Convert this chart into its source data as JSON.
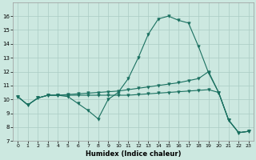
{
  "xlabel": "Humidex (Indice chaleur)",
  "bg_color": "#cce8e0",
  "grid_color": "#aaccC4",
  "line_color": "#1a7060",
  "x_data": [
    0,
    1,
    2,
    3,
    4,
    5,
    6,
    7,
    8,
    9,
    10,
    11,
    12,
    13,
    14,
    15,
    16,
    17,
    18,
    19,
    20,
    21,
    22,
    23
  ],
  "series1": [
    10.2,
    9.6,
    10.1,
    10.3,
    10.3,
    10.2,
    9.7,
    9.2,
    8.6,
    10.0,
    10.5,
    11.5,
    13.0,
    14.7,
    15.8,
    16.0,
    15.7,
    15.5,
    13.8,
    11.9,
    10.5,
    8.5,
    7.6,
    7.7
  ],
  "series2": [
    10.2,
    9.6,
    10.1,
    10.3,
    10.3,
    10.35,
    10.4,
    10.45,
    10.5,
    10.55,
    10.6,
    10.7,
    10.8,
    10.9,
    11.0,
    11.1,
    11.2,
    11.35,
    11.5,
    12.0,
    10.5,
    8.5,
    7.6,
    7.7
  ],
  "series3": [
    10.2,
    9.6,
    10.1,
    10.3,
    10.3,
    10.3,
    10.3,
    10.3,
    10.3,
    10.3,
    10.3,
    10.3,
    10.35,
    10.4,
    10.45,
    10.5,
    10.55,
    10.6,
    10.65,
    10.7,
    10.5,
    8.5,
    7.6,
    7.7
  ],
  "ylim": [
    7,
    17
  ],
  "xlim": [
    -0.5,
    23.5
  ],
  "yticks": [
    7,
    8,
    9,
    10,
    11,
    12,
    13,
    14,
    15,
    16
  ],
  "xticks": [
    0,
    1,
    2,
    3,
    4,
    5,
    6,
    7,
    8,
    9,
    10,
    11,
    12,
    13,
    14,
    15,
    16,
    17,
    18,
    19,
    20,
    21,
    22,
    23
  ]
}
